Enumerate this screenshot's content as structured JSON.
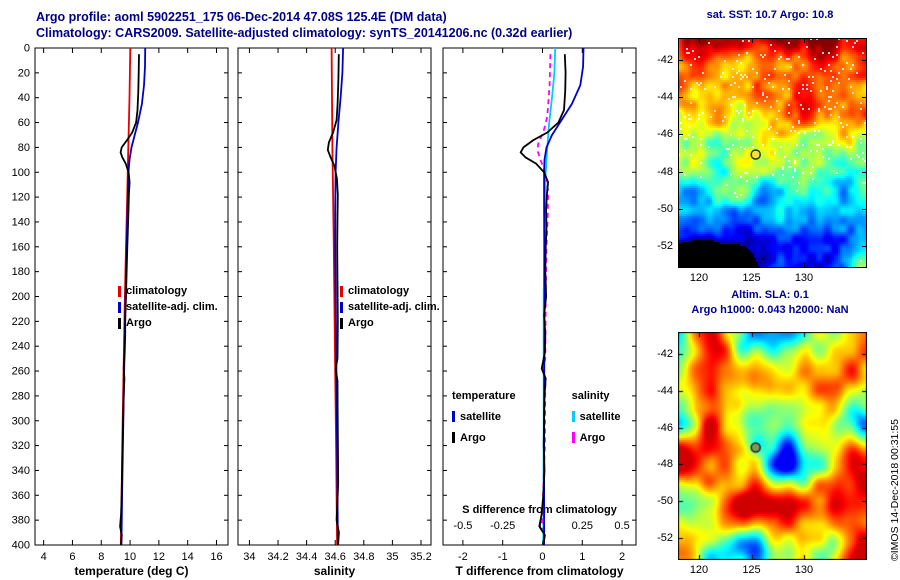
{
  "header": {
    "title_line1": "Argo profile: aoml 5902251_175 06-Dec-2014 47.08S 125.4E (DM data)",
    "title_line2": "Climatology: CARS2009. Satellite-adjusted climatology: synTS_20141206.nc (0.32d earlier)"
  },
  "copyright": "©IMOS 14-Dec-2018 00:31:55",
  "legend_profiles": {
    "items": [
      {
        "label": "climatology",
        "color": "#e60000"
      },
      {
        "label": "satellite-adj. clim.",
        "color": "#0000cc"
      },
      {
        "label": "Argo",
        "color": "#000000"
      }
    ]
  },
  "legend_diff": {
    "columns": [
      {
        "header": "temperature",
        "items": [
          {
            "label": "satellite",
            "color": "#0000cc"
          },
          {
            "label": "Argo",
            "color": "#000000"
          }
        ]
      },
      {
        "header": "salinity",
        "items": [
          {
            "label": "satellite",
            "color": "#00ccff"
          },
          {
            "label": "Argo",
            "color": "#ff00ff"
          }
        ]
      }
    ]
  },
  "chart_data": [
    {
      "id": "temperature",
      "type": "line",
      "xlabel": "temperature (deg C)",
      "xlim": [
        3.4,
        16.8
      ],
      "xticks": [
        4,
        6,
        8,
        10,
        12,
        14,
        16
      ],
      "ylim": [
        0,
        400
      ],
      "yticks": [
        0,
        20,
        40,
        60,
        80,
        100,
        120,
        140,
        160,
        180,
        200,
        220,
        240,
        260,
        280,
        300,
        320,
        340,
        360,
        380,
        400
      ],
      "show_ylabels": true,
      "series": [
        {
          "name": "climatology",
          "color": "#e60000",
          "width": 1.8,
          "points": [
            [
              0,
              10.02
            ],
            [
              40,
              9.96
            ],
            [
              80,
              9.88
            ],
            [
              120,
              9.8
            ],
            [
              160,
              9.72
            ],
            [
              200,
              9.64
            ],
            [
              240,
              9.58
            ],
            [
              280,
              9.52
            ],
            [
              320,
              9.46
            ],
            [
              360,
              9.41
            ],
            [
              400,
              9.36
            ]
          ]
        },
        {
          "name": "satellite-adj. clim.",
          "color": "#0000cc",
          "width": 1.8,
          "points": [
            [
              0,
              11.05
            ],
            [
              15,
              11.04
            ],
            [
              30,
              10.97
            ],
            [
              45,
              10.82
            ],
            [
              60,
              10.55
            ],
            [
              70,
              10.32
            ],
            [
              80,
              10.1
            ],
            [
              90,
              9.96
            ],
            [
              100,
              9.89
            ],
            [
              115,
              9.85
            ],
            [
              130,
              9.83
            ],
            [
              160,
              9.77
            ],
            [
              200,
              9.69
            ],
            [
              240,
              9.62
            ],
            [
              280,
              9.56
            ],
            [
              320,
              9.5
            ],
            [
              360,
              9.45
            ],
            [
              400,
              9.4
            ]
          ]
        },
        {
          "name": "Argo",
          "color": "#000000",
          "width": 1.8,
          "points": [
            [
              5,
              10.62
            ],
            [
              20,
              10.6
            ],
            [
              35,
              10.57
            ],
            [
              50,
              10.52
            ],
            [
              60,
              10.42
            ],
            [
              68,
              10.15
            ],
            [
              74,
              9.8
            ],
            [
              80,
              9.42
            ],
            [
              84,
              9.34
            ],
            [
              88,
              9.46
            ],
            [
              93,
              9.7
            ],
            [
              100,
              9.9
            ],
            [
              108,
              9.97
            ],
            [
              118,
              9.92
            ],
            [
              130,
              9.89
            ],
            [
              145,
              9.85
            ],
            [
              160,
              9.81
            ],
            [
              180,
              9.76
            ],
            [
              200,
              9.72
            ],
            [
              215,
              9.67
            ],
            [
              230,
              9.66
            ],
            [
              245,
              9.63
            ],
            [
              258,
              9.56
            ],
            [
              266,
              9.61
            ],
            [
              280,
              9.56
            ],
            [
              300,
              9.52
            ],
            [
              320,
              9.48
            ],
            [
              340,
              9.45
            ],
            [
              360,
              9.42
            ],
            [
              375,
              9.38
            ],
            [
              385,
              9.31
            ],
            [
              392,
              9.43
            ],
            [
              400,
              9.37
            ]
          ]
        }
      ]
    },
    {
      "id": "salinity",
      "type": "line",
      "xlabel": "salinity",
      "xlim": [
        33.92,
        35.27
      ],
      "xticks": [
        34,
        34.2,
        34.4,
        34.6,
        34.8,
        35,
        35.2
      ],
      "ylim": [
        0,
        400
      ],
      "yticks": [
        0,
        20,
        40,
        60,
        80,
        100,
        120,
        140,
        160,
        180,
        200,
        220,
        240,
        260,
        280,
        300,
        320,
        340,
        360,
        380,
        400
      ],
      "show_ylabels": false,
      "series": [
        {
          "name": "climatology",
          "color": "#e60000",
          "width": 1.8,
          "points": [
            [
              0,
              34.575
            ],
            [
              80,
              34.58
            ],
            [
              160,
              34.59
            ],
            [
              240,
              34.598
            ],
            [
              320,
              34.606
            ],
            [
              400,
              34.613
            ]
          ]
        },
        {
          "name": "satellite-adj. clim.",
          "color": "#0000cc",
          "width": 1.8,
          "points": [
            [
              0,
              34.655
            ],
            [
              20,
              34.65
            ],
            [
              40,
              34.638
            ],
            [
              60,
              34.622
            ],
            [
              80,
              34.61
            ],
            [
              100,
              34.603
            ],
            [
              130,
              34.6
            ],
            [
              160,
              34.6
            ],
            [
              200,
              34.603
            ],
            [
              240,
              34.607
            ],
            [
              280,
              34.61
            ],
            [
              320,
              34.613
            ],
            [
              360,
              34.616
            ],
            [
              400,
              34.619
            ]
          ]
        },
        {
          "name": "Argo",
          "color": "#000000",
          "width": 1.8,
          "points": [
            [
              5,
              34.625
            ],
            [
              25,
              34.622
            ],
            [
              45,
              34.617
            ],
            [
              58,
              34.61
            ],
            [
              68,
              34.585
            ],
            [
              76,
              34.556
            ],
            [
              82,
              34.548
            ],
            [
              88,
              34.568
            ],
            [
              95,
              34.595
            ],
            [
              105,
              34.612
            ],
            [
              118,
              34.618
            ],
            [
              135,
              34.616
            ],
            [
              160,
              34.614
            ],
            [
              190,
              34.616
            ],
            [
              220,
              34.618
            ],
            [
              250,
              34.616
            ],
            [
              258,
              34.603
            ],
            [
              268,
              34.616
            ],
            [
              290,
              34.617
            ],
            [
              320,
              34.619
            ],
            [
              350,
              34.621
            ],
            [
              380,
              34.61
            ],
            [
              390,
              34.626
            ],
            [
              400,
              34.62
            ]
          ]
        }
      ]
    },
    {
      "id": "tdiff",
      "type": "line",
      "xlabel": "T difference from climatology",
      "xlim": [
        -2.5,
        2.35
      ],
      "xticks": [
        -2,
        -1,
        0,
        1,
        2
      ],
      "ylim": [
        0,
        400
      ],
      "yticks": [
        0,
        20,
        40,
        60,
        80,
        100,
        120,
        140,
        160,
        180,
        200,
        220,
        240,
        260,
        280,
        300,
        320,
        340,
        360,
        380,
        400
      ],
      "show_ylabels": false,
      "secondary_axis": {
        "label": "S difference from climatology",
        "tick_values": [
          -2,
          -1,
          0,
          1,
          2
        ],
        "tick_labels": [
          "-0.5",
          "-0.25",
          "0",
          "0.25",
          "0.5"
        ]
      },
      "series": [
        {
          "name": "salinity satellite",
          "color": "#00ccff",
          "width": 1.8,
          "points": [
            [
              0,
              0.32
            ],
            [
              20,
              0.3
            ],
            [
              40,
              0.24
            ],
            [
              60,
              0.17
            ],
            [
              80,
              0.12
            ],
            [
              100,
              0.08
            ],
            [
              130,
              0.06
            ],
            [
              200,
              0.03
            ],
            [
              300,
              0.03
            ],
            [
              400,
              0.02
            ]
          ]
        },
        {
          "name": "salinity Argo",
          "color": "#ff00ff",
          "width": 1.8,
          "dash": "5,4",
          "points": [
            [
              5,
              0.2
            ],
            [
              30,
              0.18
            ],
            [
              55,
              0.12
            ],
            [
              68,
              0.02
            ],
            [
              76,
              -0.1
            ],
            [
              82,
              -0.13
            ],
            [
              90,
              -0.05
            ],
            [
              100,
              0.07
            ],
            [
              115,
              0.14
            ],
            [
              135,
              0.13
            ],
            [
              160,
              0.1
            ],
            [
              200,
              0.08
            ],
            [
              250,
              0.07
            ],
            [
              258,
              0.02
            ],
            [
              270,
              0.07
            ],
            [
              320,
              0.06
            ],
            [
              380,
              -0.01
            ],
            [
              390,
              0.05
            ],
            [
              400,
              0.03
            ]
          ]
        },
        {
          "name": "temperature satellite",
          "color": "#0000cc",
          "width": 1.8,
          "points": [
            [
              0,
              1.03
            ],
            [
              15,
              1.02
            ],
            [
              30,
              0.95
            ],
            [
              45,
              0.74
            ],
            [
              60,
              0.44
            ],
            [
              70,
              0.24
            ],
            [
              80,
              0.1
            ],
            [
              90,
              0.05
            ],
            [
              100,
              0.04
            ],
            [
              130,
              0.04
            ],
            [
              200,
              0.05
            ],
            [
              300,
              0.04
            ],
            [
              400,
              0.04
            ]
          ]
        },
        {
          "name": "temperature Argo",
          "color": "#000000",
          "width": 1.8,
          "points": [
            [
              5,
              0.56
            ],
            [
              20,
              0.58
            ],
            [
              35,
              0.57
            ],
            [
              50,
              0.54
            ],
            [
              60,
              0.4
            ],
            [
              68,
              0.12
            ],
            [
              74,
              -0.22
            ],
            [
              80,
              -0.48
            ],
            [
              84,
              -0.55
            ],
            [
              88,
              -0.43
            ],
            [
              93,
              -0.16
            ],
            [
              100,
              0.04
            ],
            [
              108,
              0.14
            ],
            [
              118,
              0.11
            ],
            [
              130,
              0.09
            ],
            [
              145,
              0.1
            ],
            [
              160,
              0.08
            ],
            [
              180,
              0.07
            ],
            [
              200,
              0.09
            ],
            [
              215,
              0.04
            ],
            [
              230,
              0.07
            ],
            [
              245,
              0.06
            ],
            [
              258,
              -0.02
            ],
            [
              266,
              0.08
            ],
            [
              280,
              0.05
            ],
            [
              300,
              0.04
            ],
            [
              320,
              0.03
            ],
            [
              340,
              0.05
            ],
            [
              360,
              0.02
            ],
            [
              375,
              -0.02
            ],
            [
              385,
              -0.08
            ],
            [
              392,
              0.06
            ],
            [
              400,
              0.02
            ]
          ]
        }
      ]
    },
    {
      "id": "sst-map",
      "type": "heatmap",
      "title": "sat. SST: 10.7 Argo: 10.8",
      "xlim": [
        118,
        136
      ],
      "xticks": [
        120,
        125,
        130
      ],
      "ylim": [
        -53.2,
        -40.8
      ],
      "yticks": [
        -42,
        -44,
        -46,
        -48,
        -50,
        -52
      ],
      "colormap": "jet",
      "style": "pixelated",
      "field": "sst",
      "marker": {
        "lon": 125.4,
        "lat": -47.08,
        "fill": "#f0e442",
        "edge": "#333300"
      }
    },
    {
      "id": "sla-map",
      "type": "heatmap",
      "title": "Altim. SLA: 0.1",
      "subtitle": "Argo h1000: 0.043 h2000: NaN",
      "xlim": [
        118,
        136
      ],
      "xticks": [
        120,
        125,
        130
      ],
      "ylim": [
        -53.2,
        -40.8
      ],
      "yticks": [
        -42,
        -44,
        -46,
        -48,
        -50,
        -52
      ],
      "colormap": "jet",
      "style": "smooth",
      "field": "sla",
      "marker": {
        "lon": 125.4,
        "lat": -47.08,
        "fill": "#7a9a5a",
        "edge": "#222222"
      }
    }
  ]
}
